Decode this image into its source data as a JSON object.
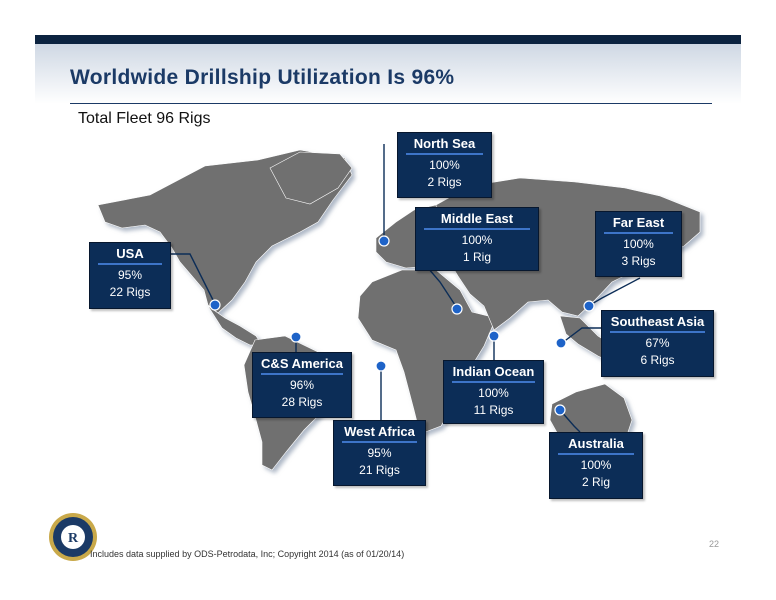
{
  "title": "Worldwide Drillship Utilization Is 96%",
  "subtitle": "Total Fleet 96 Rigs",
  "regions": [
    {
      "name": "North Sea",
      "pct": "100%",
      "rigs": "2 Rigs"
    },
    {
      "name": "Middle East",
      "pct": "100%",
      "rigs": "1 Rig"
    },
    {
      "name": "Far East",
      "pct": "100%",
      "rigs": "3 Rigs"
    },
    {
      "name": "USA",
      "pct": "95%",
      "rigs": "22 Rigs"
    },
    {
      "name": "Southeast Asia",
      "pct": "67%",
      "rigs": "6 Rigs"
    },
    {
      "name": "C&S America",
      "pct": "96%",
      "rigs": "28 Rigs"
    },
    {
      "name": "Indian Ocean",
      "pct": "100%",
      "rigs": "11 Rigs"
    },
    {
      "name": "West Africa",
      "pct": "95%",
      "rigs": "21 Rigs"
    },
    {
      "name": "Australia",
      "pct": "100%",
      "rigs": "2 Rig"
    }
  ],
  "footer": "Includes data supplied by ODS-Petrodata, Inc; Copyright 2014 (as of 01/20/14)",
  "page_number": "22",
  "logo_letter": "R",
  "colors": {
    "navy": "#0c2d57",
    "title": "#1b3a66",
    "land": "#6f6f6f",
    "accent": "#3d74c8"
  }
}
